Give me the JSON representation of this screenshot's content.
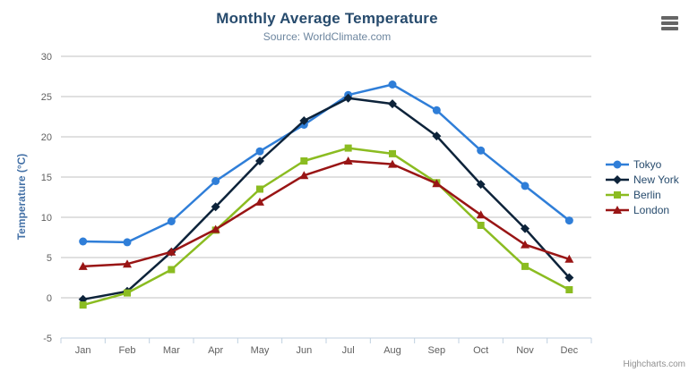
{
  "chart_data": {
    "type": "line",
    "title": "Monthly Average Temperature",
    "subtitle": "Source: WorldClimate.com",
    "xlabel": "",
    "ylabel": "Temperature (°C)",
    "ylim": [
      -5,
      30
    ],
    "y_tick_step": 5,
    "grid": true,
    "legend_position": "right",
    "categories": [
      "Jan",
      "Feb",
      "Mar",
      "Apr",
      "May",
      "Jun",
      "Jul",
      "Aug",
      "Sep",
      "Oct",
      "Nov",
      "Dec"
    ],
    "series": [
      {
        "name": "Tokyo",
        "color": "#2f7ed8",
        "marker": "circle",
        "values": [
          7.0,
          6.9,
          9.5,
          14.5,
          18.2,
          21.5,
          25.2,
          26.5,
          23.3,
          18.3,
          13.9,
          9.6
        ]
      },
      {
        "name": "New York",
        "color": "#0d233a",
        "marker": "diamond",
        "values": [
          -0.2,
          0.8,
          5.7,
          11.3,
          17.0,
          22.0,
          24.8,
          24.1,
          20.1,
          14.1,
          8.6,
          2.5
        ]
      },
      {
        "name": "Berlin",
        "color": "#8bbc21",
        "marker": "square",
        "values": [
          -0.9,
          0.6,
          3.5,
          8.4,
          13.5,
          17.0,
          18.6,
          17.9,
          14.3,
          9.0,
          3.9,
          1.0
        ]
      },
      {
        "name": "London",
        "color": "#991515",
        "marker": "triangle",
        "values": [
          3.9,
          4.2,
          5.7,
          8.5,
          11.9,
          15.2,
          17.0,
          16.6,
          14.2,
          10.3,
          6.6,
          4.8
        ]
      }
    ],
    "credits": "Highcharts.com"
  },
  "icons": {
    "context_menu": "hamburger-icon"
  },
  "colors": {
    "background": "#ffffff",
    "title": "#274b6d",
    "subtitle": "#6d869f",
    "axis_title": "#4572a7",
    "tick_label": "#606060",
    "grid": "#c0c0c0",
    "axis_line": "#c0d0e0",
    "legend_text": "#274b6d",
    "credits": "#909090",
    "menu_icon": "#666666"
  }
}
